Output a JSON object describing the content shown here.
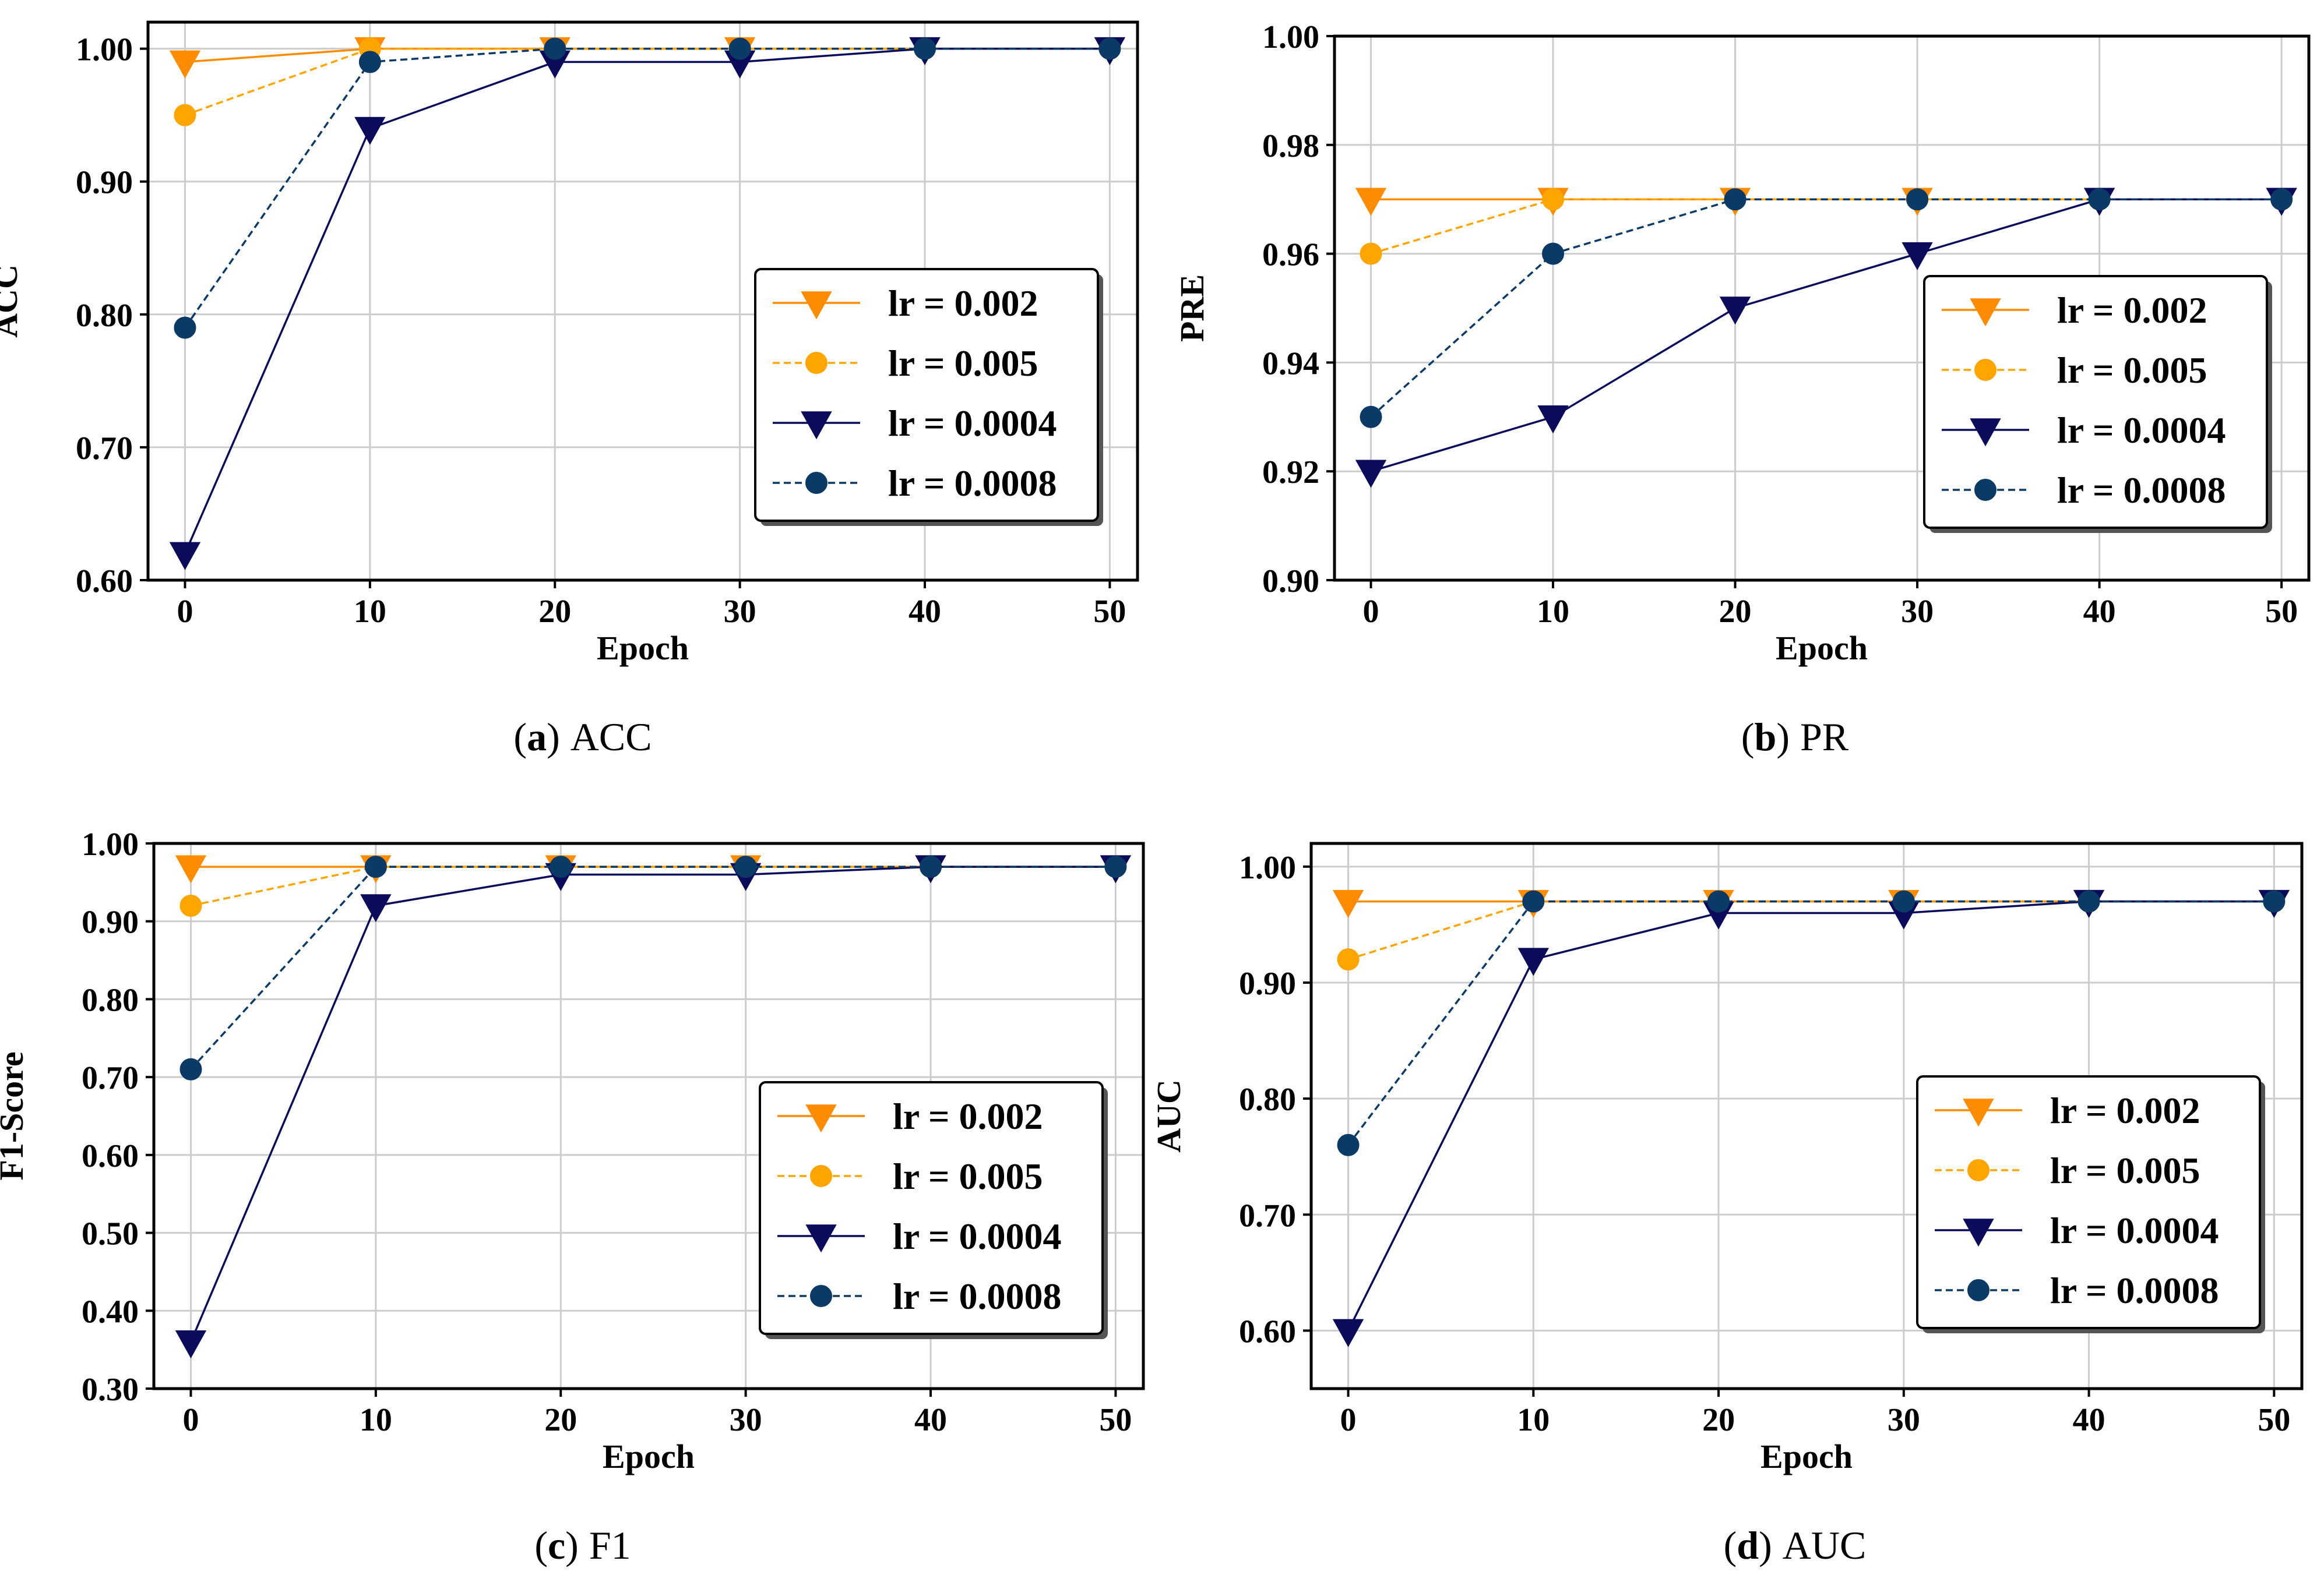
{
  "chart_data": [
    {
      "id": "a",
      "type": "line",
      "caption_letter": "a",
      "caption_text": "ACC",
      "xlabel": "Epoch",
      "ylabel": "ACC",
      "ylim": [
        0.6,
        1.02
      ],
      "yticks": [
        0.6,
        0.7,
        0.8,
        0.9,
        1.0
      ],
      "ytick_labels": [
        "0.60",
        "0.70",
        "0.80",
        "0.90",
        "1.00"
      ],
      "xlim": [
        -2,
        51.5
      ],
      "xticks": [
        0,
        10,
        20,
        30,
        40,
        50
      ],
      "xtick_labels": [
        "0",
        "10",
        "20",
        "30",
        "40",
        "50"
      ],
      "grid": true,
      "legend_position": "center-right",
      "x": [
        0,
        10,
        20,
        30,
        40,
        50
      ],
      "series": [
        {
          "name": "lr = 0.002",
          "values": [
            0.99,
            1.0,
            1.0,
            1.0,
            1.0,
            1.0
          ]
        },
        {
          "name": "lr = 0.005",
          "values": [
            0.95,
            1.0,
            1.0,
            1.0,
            1.0,
            1.0
          ]
        },
        {
          "name": "lr = 0.0004",
          "values": [
            0.62,
            0.94,
            0.99,
            0.99,
            1.0,
            1.0
          ]
        },
        {
          "name": "lr = 0.0008",
          "values": [
            0.79,
            0.99,
            1.0,
            1.0,
            1.0,
            1.0
          ]
        }
      ]
    },
    {
      "id": "b",
      "type": "line",
      "caption_letter": "b",
      "caption_text": "PR",
      "xlabel": "Epoch",
      "ylabel": "PRE",
      "ylim": [
        0.9,
        1.0
      ],
      "yticks": [
        0.9,
        0.92,
        0.94,
        0.96,
        0.98,
        1.0
      ],
      "ytick_labels": [
        "0.90",
        "0.92",
        "0.94",
        "0.96",
        "0.98",
        "1.00"
      ],
      "xlim": [
        -2,
        51.5
      ],
      "xticks": [
        0,
        10,
        20,
        30,
        40,
        50
      ],
      "xtick_labels": [
        "0",
        "10",
        "20",
        "30",
        "40",
        "50"
      ],
      "grid": true,
      "legend_position": "center-right",
      "x": [
        0,
        10,
        20,
        30,
        40,
        50
      ],
      "series": [
        {
          "name": "lr = 0.002",
          "values": [
            0.97,
            0.97,
            0.97,
            0.97,
            0.97,
            0.97
          ]
        },
        {
          "name": "lr = 0.005",
          "values": [
            0.96,
            0.97,
            0.97,
            0.97,
            0.97,
            0.97
          ]
        },
        {
          "name": "lr = 0.0004",
          "values": [
            0.92,
            0.93,
            0.95,
            0.96,
            0.97,
            0.97
          ]
        },
        {
          "name": "lr = 0.0008",
          "values": [
            0.93,
            0.96,
            0.97,
            0.97,
            0.97,
            0.97
          ]
        }
      ]
    },
    {
      "id": "c",
      "type": "line",
      "caption_letter": "c",
      "caption_text": "F1",
      "xlabel": "Epoch",
      "ylabel": "F1-Score",
      "ylim": [
        0.3,
        1.0
      ],
      "yticks": [
        0.3,
        0.4,
        0.5,
        0.6,
        0.7,
        0.8,
        0.9,
        1.0
      ],
      "ytick_labels": [
        "0.30",
        "0.40",
        "0.50",
        "0.60",
        "0.70",
        "0.80",
        "0.90",
        "1.00"
      ],
      "xlim": [
        -2,
        51.5
      ],
      "xticks": [
        0,
        10,
        20,
        30,
        40,
        50
      ],
      "xtick_labels": [
        "0",
        "10",
        "20",
        "30",
        "40",
        "50"
      ],
      "grid": true,
      "legend_position": "lower-right",
      "x": [
        0,
        10,
        20,
        30,
        40,
        50
      ],
      "series": [
        {
          "name": "lr = 0.002",
          "values": [
            0.97,
            0.97,
            0.97,
            0.97,
            0.97,
            0.97
          ]
        },
        {
          "name": "lr = 0.005",
          "values": [
            0.92,
            0.97,
            0.97,
            0.97,
            0.97,
            0.97
          ]
        },
        {
          "name": "lr = 0.0004",
          "values": [
            0.36,
            0.92,
            0.96,
            0.96,
            0.97,
            0.97
          ]
        },
        {
          "name": "lr = 0.0008",
          "values": [
            0.71,
            0.97,
            0.97,
            0.97,
            0.97,
            0.97
          ]
        }
      ]
    },
    {
      "id": "d",
      "type": "line",
      "caption_letter": "d",
      "caption_text": "AUC",
      "xlabel": "Epoch",
      "ylabel": "AUC",
      "ylim": [
        0.55,
        1.02
      ],
      "yticks": [
        0.6,
        0.7,
        0.8,
        0.9,
        1.0
      ],
      "ytick_labels": [
        "0.60",
        "0.70",
        "0.80",
        "0.90",
        "1.00"
      ],
      "xlim": [
        -2,
        51.5
      ],
      "xticks": [
        0,
        10,
        20,
        30,
        40,
        50
      ],
      "xtick_labels": [
        "0",
        "10",
        "20",
        "30",
        "40",
        "50"
      ],
      "grid": true,
      "legend_position": "lower-right",
      "x": [
        0,
        10,
        20,
        30,
        40,
        50
      ],
      "series": [
        {
          "name": "lr = 0.002",
          "values": [
            0.97,
            0.97,
            0.97,
            0.97,
            0.97,
            0.97
          ]
        },
        {
          "name": "lr = 0.005",
          "values": [
            0.92,
            0.97,
            0.97,
            0.97,
            0.97,
            0.97
          ]
        },
        {
          "name": "lr = 0.0004",
          "values": [
            0.6,
            0.92,
            0.96,
            0.96,
            0.97,
            0.97
          ]
        },
        {
          "name": "lr = 0.0008",
          "values": [
            0.76,
            0.97,
            0.97,
            0.97,
            0.97,
            0.97
          ]
        }
      ]
    }
  ],
  "series_styles": [
    {
      "color": "#FF8C00",
      "marker": "triangle-down-icon",
      "dash": "solid"
    },
    {
      "color": "#FFA500",
      "marker": "circle-icon",
      "dash": "dashed"
    },
    {
      "color": "#0B0B5C",
      "marker": "triangle-down-icon",
      "dash": "solid"
    },
    {
      "color": "#0B3A66",
      "marker": "circle-icon",
      "dash": "dashed"
    }
  ],
  "colors": {
    "grid": "#cccccc",
    "axis": "#000000",
    "background": "#ffffff"
  }
}
